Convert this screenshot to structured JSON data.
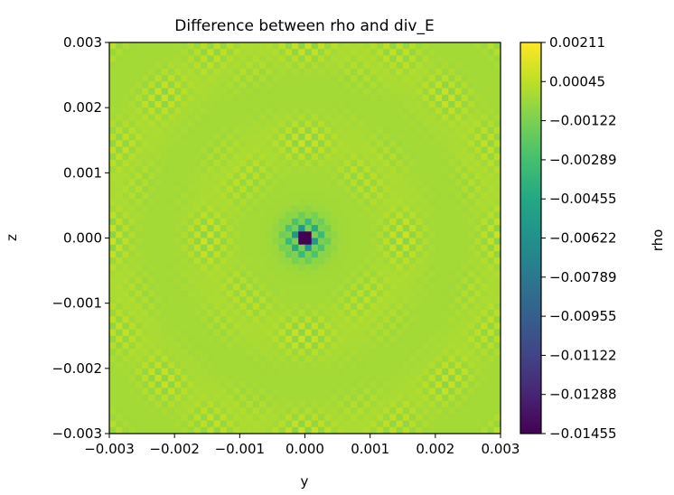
{
  "chart_data": {
    "type": "heatmap",
    "title": "Difference between rho and div_E",
    "xlabel": "y",
    "ylabel": "z",
    "colorbar_label": "rho",
    "xlim": [
      -0.003,
      0.003
    ],
    "ylim": [
      -0.003,
      0.003
    ],
    "x_ticks": [
      "−0.003",
      "−0.002",
      "−0.001",
      "0.000",
      "0.001",
      "0.002",
      "0.003"
    ],
    "y_ticks": [
      "0.003",
      "0.002",
      "0.001",
      "0.000",
      "−0.001",
      "−0.002",
      "−0.003"
    ],
    "grid_size": 60,
    "colormap": "viridis",
    "vmin": -0.01455,
    "vmax": 0.00211,
    "colorbar_ticks": [
      "0.00211",
      "0.00045",
      "−0.00122",
      "−0.00289",
      "−0.00455",
      "−0.00622",
      "−0.00789",
      "−0.00955",
      "−0.01122",
      "−0.01288",
      "−0.01455"
    ],
    "background_value": -0.0002,
    "checker_amplitude": 0.0008,
    "center_minimum": -0.01455,
    "center_halo_value": -0.0046
  }
}
